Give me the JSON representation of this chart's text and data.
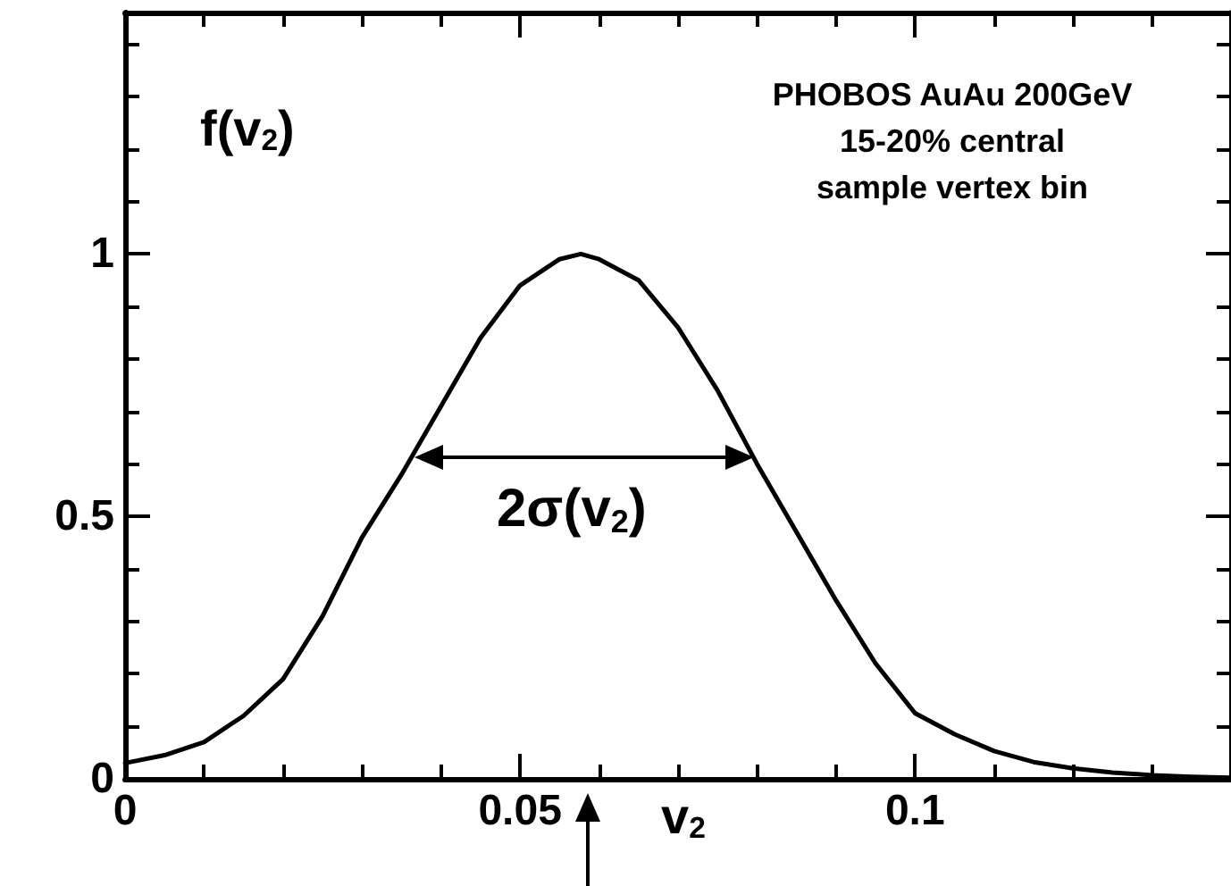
{
  "chart_data": {
    "type": "line",
    "xlabel": "v$_{2}$",
    "ylabel": "f(v$_{2}$)",
    "x": [
      0,
      0.005,
      0.01,
      0.015,
      0.02,
      0.025,
      0.03,
      0.035,
      0.04,
      0.045,
      0.05,
      0.055,
      0.0577,
      0.06,
      0.065,
      0.07,
      0.075,
      0.08,
      0.085,
      0.09,
      0.095,
      0.1,
      0.105,
      0.11,
      0.115,
      0.12,
      0.125,
      0.13,
      0.135,
      0.14
    ],
    "series": [
      {
        "color": "#000000",
        "values": [
          0.03,
          0.045,
          0.07,
          0.12,
          0.19,
          0.31,
          0.46,
          0.58,
          0.71,
          0.84,
          0.94,
          0.99,
          1.0,
          0.99,
          0.95,
          0.86,
          0.74,
          0.6,
          0.47,
          0.34,
          0.22,
          0.125,
          0.085,
          0.053,
          0.032,
          0.02,
          0.012,
          0.007,
          0.004,
          0.002
        ]
      }
    ],
    "xlim": [
      0,
      0.14
    ],
    "ylim": [
      0,
      1.46
    ],
    "xticks": [
      0,
      {
        "value": 0.01,
        "label": null
      },
      {
        "value": 0.02,
        "label": null
      },
      {
        "value": 0.03,
        "label": null
      },
      {
        "value": 0.04,
        "label": null
      },
      0.05,
      {
        "value": 0.06,
        "label": null
      },
      {
        "value": 0.07,
        "label": null
      },
      {
        "value": 0.08,
        "label": null
      },
      {
        "value": 0.09,
        "label": null
      },
      0.1,
      {
        "value": 0.11,
        "label": null
      },
      {
        "value": 0.12,
        "label": null
      },
      {
        "value": 0.13,
        "label": null
      }
    ],
    "yticks": [
      0,
      {
        "value": 0.1,
        "label": null
      },
      {
        "value": 0.2,
        "label": null
      },
      {
        "value": 0.3,
        "label": null
      },
      {
        "value": 0.4,
        "label": null
      },
      0.5,
      {
        "value": 0.6,
        "label": null
      },
      {
        "value": 0.7,
        "label": null
      },
      {
        "value": 0.8,
        "label": null
      },
      {
        "value": 0.9,
        "label": null
      },
      1,
      {
        "value": 1.1,
        "label": null
      },
      {
        "value": 1.2,
        "label": null
      },
      {
        "value": 1.3,
        "label": null
      },
      {
        "value": 1.4,
        "label": null
      }
    ],
    "annotations": [
      "PHOBOS AuAu 200GeV\n15-20% central\nsample vertex bin",
      "2σ(v$_{2}$)"
    ],
    "grid": false,
    "marker": "none",
    "line_style": "solid"
  }
}
